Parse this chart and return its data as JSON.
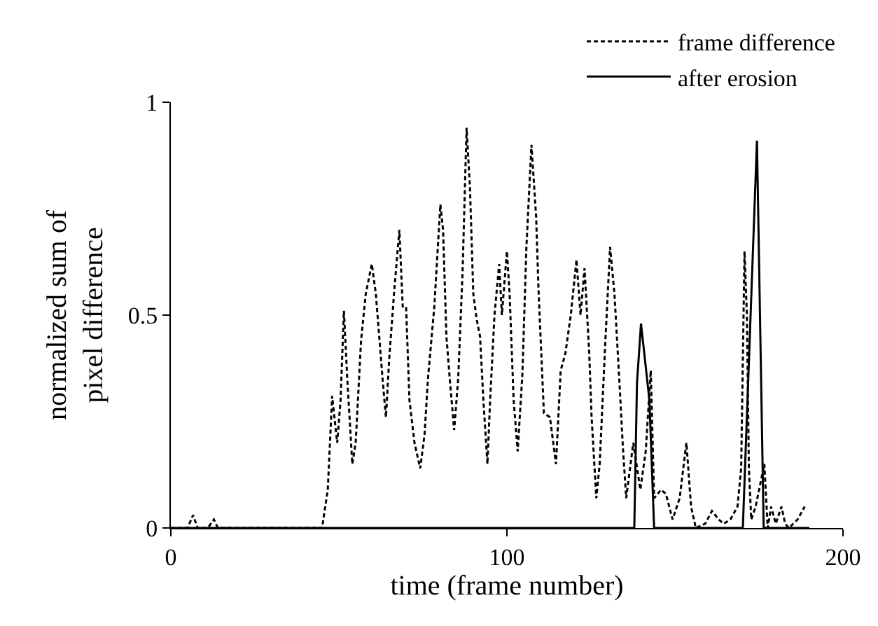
{
  "chart_data": {
    "type": "line",
    "xlabel": "time (frame number)",
    "ylabel": "normalized sum of\npixel difference",
    "xlim": [
      0,
      200
    ],
    "xticks": [
      0,
      100,
      200
    ],
    "ylim": [
      0,
      1
    ],
    "yticks": [
      0,
      0.5,
      1
    ],
    "grid": false,
    "legend": "top right",
    "marker": "none",
    "series": [
      {
        "name": "frame difference",
        "color": "#000000",
        "line_style": "dashed",
        "x": [
          0,
          5,
          6.6,
          8,
          11,
          12.8,
          14,
          45,
          46.7,
          48,
          49.5,
          50.5,
          51.5,
          52.5,
          54,
          55,
          56.6,
          58,
          59.8,
          61,
          62,
          63,
          64,
          65,
          66.5,
          68,
          69,
          70,
          71,
          72.5,
          74.2,
          75.5,
          76.5,
          78.4,
          80.2,
          81,
          82,
          83,
          84.3,
          85.5,
          86.8,
          88,
          89,
          90,
          91,
          92,
          93,
          94.2,
          95,
          96.3,
          97.7,
          98.5,
          100,
          100.8,
          102,
          103.2,
          104.6,
          105.8,
          107.3,
          108.7,
          109.4,
          111,
          112.8,
          114.6,
          116,
          117.4,
          119,
          120.7,
          121.9,
          123.1,
          124.5,
          125.2,
          126.6,
          127.6,
          129.3,
          130.7,
          132,
          133.5,
          134.5,
          135.5,
          137.6,
          139.7,
          141.3,
          142.8,
          143.8,
          145.9,
          147.3,
          149.3,
          151.4,
          153.4,
          154.8,
          156.2,
          159,
          161,
          163,
          164.5,
          166.5,
          168.6,
          169.7,
          170.7,
          171.4,
          172,
          172.7,
          174,
          176.6,
          177.6,
          178.6,
          180,
          181.7,
          182.8,
          183.9,
          186.5,
          188.6
        ],
        "values": [
          0,
          0,
          0.03,
          0,
          0,
          0.02,
          0,
          0,
          0.09,
          0.31,
          0.2,
          0.3,
          0.51,
          0.35,
          0.15,
          0.2,
          0.44,
          0.55,
          0.62,
          0.55,
          0.45,
          0.35,
          0.26,
          0.4,
          0.56,
          0.7,
          0.52,
          0.52,
          0.3,
          0.2,
          0.14,
          0.22,
          0.35,
          0.52,
          0.76,
          0.7,
          0.45,
          0.35,
          0.23,
          0.35,
          0.6,
          0.94,
          0.8,
          0.55,
          0.49,
          0.45,
          0.3,
          0.15,
          0.3,
          0.5,
          0.62,
          0.5,
          0.65,
          0.55,
          0.3,
          0.18,
          0.36,
          0.66,
          0.9,
          0.73,
          0.56,
          0.27,
          0.26,
          0.15,
          0.37,
          0.41,
          0.5,
          0.63,
          0.5,
          0.61,
          0.41,
          0.26,
          0.07,
          0.15,
          0.44,
          0.66,
          0.55,
          0.34,
          0.19,
          0.07,
          0.2,
          0.09,
          0.18,
          0.37,
          0.07,
          0.09,
          0.08,
          0.02,
          0.07,
          0.2,
          0.05,
          0,
          0.01,
          0.04,
          0.02,
          0.01,
          0.02,
          0.05,
          0.14,
          0.65,
          0.5,
          0.14,
          0.02,
          0.05,
          0.15,
          0,
          0.05,
          0.01,
          0.05,
          0.01,
          0,
          0.02,
          0.05
        ]
      },
      {
        "name": "after erosion",
        "color": "#000000",
        "line_style": "solid",
        "x": [
          0,
          137.9,
          138.7,
          139.9,
          142.4,
          143.8,
          170.2,
          174.4,
          176.4,
          190
        ],
        "values": [
          0,
          0,
          0.34,
          0.48,
          0.3,
          0,
          0,
          0.91,
          0,
          0
        ]
      }
    ]
  }
}
